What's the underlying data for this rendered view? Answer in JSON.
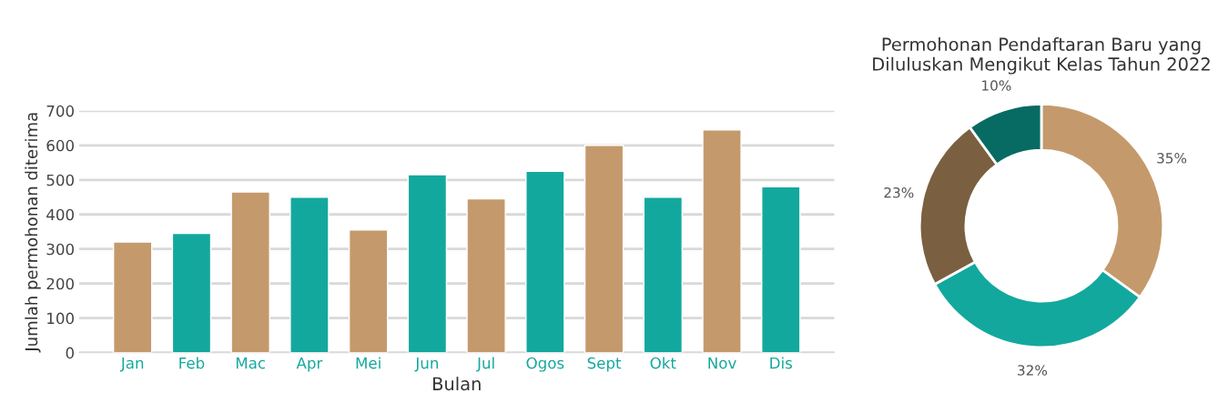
{
  "chart_data": [
    {
      "type": "bar",
      "xlabel": "Bulan",
      "ylabel": "Jumlah permohonan diterima",
      "categories": [
        "Jan",
        "Feb",
        "Mac",
        "Apr",
        "Mei",
        "Jun",
        "Jul",
        "Ogos",
        "Sept",
        "Okt",
        "Nov",
        "Dis"
      ],
      "values": [
        320,
        345,
        465,
        450,
        355,
        515,
        445,
        525,
        600,
        450,
        645,
        480
      ],
      "colors": [
        "#c49a6c",
        "#13a89e",
        "#c49a6c",
        "#13a89e",
        "#c49a6c",
        "#13a89e",
        "#c49a6c",
        "#13a89e",
        "#c49a6c",
        "#13a89e",
        "#c49a6c",
        "#13a89e"
      ],
      "ylim": [
        0,
        700
      ],
      "yticks": [
        0,
        100,
        200,
        300,
        400,
        500,
        600,
        700
      ],
      "grid": "y"
    },
    {
      "type": "donut",
      "title": "Permohonan Pendaftaran Baru yang\nDiluluskan Mengikut Kelas Tahun 2022",
      "categories": [
        null,
        null,
        null,
        null
      ],
      "values": [
        35,
        32,
        23,
        10
      ],
      "colors": [
        "#c49a6c",
        "#13a89e",
        "#7a6040",
        "#076b63"
      ],
      "value_labels": [
        "35%",
        "32%",
        "23%",
        "10%"
      ]
    }
  ]
}
